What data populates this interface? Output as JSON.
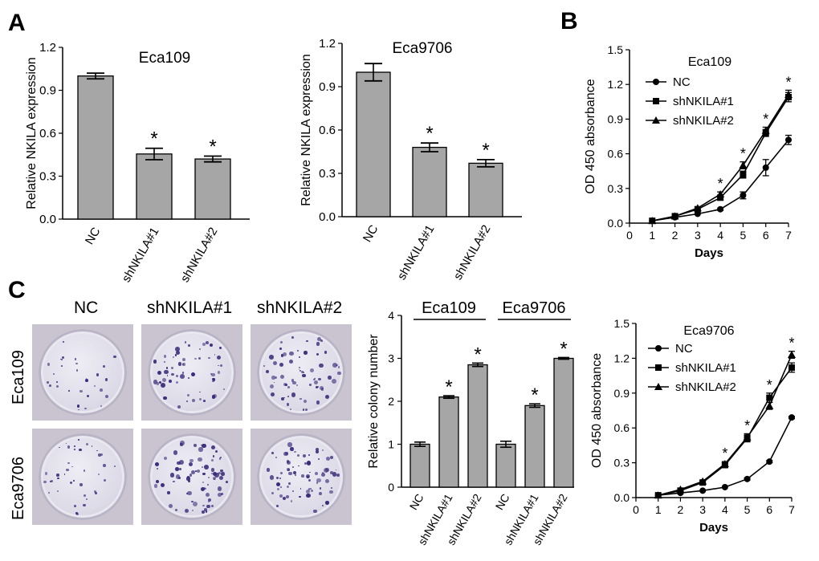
{
  "panels": {
    "A": "A",
    "B": "B",
    "C": "C"
  },
  "colors": {
    "bar": "#a6a6a6",
    "ink": "#000000",
    "colony_stain": "#3a2b7a"
  },
  "photos": {
    "column_labels": [
      "NC",
      "shNKILA#1",
      "shNKILA#2"
    ],
    "row_labels": [
      "Eca109",
      "Eca9706"
    ],
    "density": [
      [
        30,
        60,
        70
      ],
      [
        40,
        80,
        75
      ]
    ]
  },
  "chart_data": [
    {
      "id": "A1",
      "type": "bar",
      "title": "Eca109",
      "ylabel": "Relative NKILA expression",
      "categories": [
        "NC",
        "shNKILA#1",
        "shNKILA#2"
      ],
      "values": [
        1.0,
        0.455,
        0.42
      ],
      "errors": [
        0.02,
        0.04,
        0.02
      ],
      "significance": [
        "",
        "*",
        "*"
      ],
      "ylim": [
        0,
        1.2
      ],
      "yticks": [
        "0.0",
        "0.3",
        "0.6",
        "0.9",
        "1.2"
      ]
    },
    {
      "id": "A2",
      "type": "bar",
      "title": "Eca9706",
      "ylabel": "Relative NKILA expression",
      "categories": [
        "NC",
        "shNKILA#1",
        "shNKILA#2"
      ],
      "values": [
        1.0,
        0.48,
        0.37
      ],
      "errors": [
        0.06,
        0.03,
        0.025
      ],
      "significance": [
        "",
        "*",
        "*"
      ],
      "ylim": [
        0,
        1.2
      ],
      "yticks": [
        "0.0",
        "0.3",
        "0.6",
        "0.9",
        "1.2"
      ]
    },
    {
      "id": "B1",
      "type": "line",
      "title": "Eca109",
      "xlabel": "Days",
      "ylabel": "OD 450 absorbance",
      "x": [
        1,
        2,
        3,
        4,
        5,
        6,
        7
      ],
      "xticks": [
        "0",
        "1",
        "2",
        "3",
        "4",
        "5",
        "6",
        "7"
      ],
      "xlim": [
        0,
        7
      ],
      "ylim": [
        0,
        1.5
      ],
      "yticks": [
        "0.0",
        "0.3",
        "0.6",
        "0.9",
        "1.2",
        "1.5"
      ],
      "series": [
        {
          "name": "NC",
          "marker": "circle",
          "values": [
            0.02,
            0.05,
            0.08,
            0.12,
            0.24,
            0.48,
            0.72
          ],
          "errors": [
            0,
            0,
            0,
            0.01,
            0.03,
            0.07,
            0.04
          ]
        },
        {
          "name": "shNKILA#1",
          "marker": "square",
          "values": [
            0.02,
            0.06,
            0.12,
            0.22,
            0.42,
            0.78,
            1.09
          ],
          "errors": [
            0,
            0,
            0,
            0.02,
            0.03,
            0.03,
            0.04
          ]
        },
        {
          "name": "shNKILA#2",
          "marker": "triangle",
          "values": [
            0.02,
            0.06,
            0.13,
            0.25,
            0.5,
            0.8,
            1.11
          ],
          "errors": [
            0,
            0,
            0,
            0.02,
            0.03,
            0.03,
            0.04
          ]
        }
      ],
      "significance_days": [
        4,
        5,
        6,
        7
      ],
      "significance_mark": "*"
    },
    {
      "id": "B2",
      "type": "line",
      "title": "Eca9706",
      "xlabel": "Days",
      "ylabel": "OD 450 absorbance",
      "x": [
        1,
        2,
        3,
        4,
        5,
        6,
        7
      ],
      "xticks": [
        "0",
        "1",
        "2",
        "3",
        "4",
        "5",
        "6",
        "7"
      ],
      "xlim": [
        0,
        7
      ],
      "ylim": [
        0,
        1.5
      ],
      "yticks": [
        "0.0",
        "0.3",
        "0.6",
        "0.9",
        "1.2",
        "1.5"
      ],
      "series": [
        {
          "name": "NC",
          "marker": "circle",
          "values": [
            0.02,
            0.04,
            0.06,
            0.09,
            0.16,
            0.31,
            0.69
          ],
          "errors": [
            0,
            0,
            0,
            0,
            0.01,
            0.01,
            0.01
          ]
        },
        {
          "name": "shNKILA#1",
          "marker": "square",
          "values": [
            0.02,
            0.06,
            0.13,
            0.28,
            0.51,
            0.86,
            1.12
          ],
          "errors": [
            0,
            0,
            0,
            0.02,
            0.03,
            0.04,
            0.04
          ]
        },
        {
          "name": "shNKILA#2",
          "marker": "triangle",
          "values": [
            0.02,
            0.07,
            0.14,
            0.29,
            0.52,
            0.79,
            1.23
          ],
          "errors": [
            0,
            0,
            0,
            0.02,
            0.03,
            0.03,
            0.03
          ]
        }
      ],
      "significance_days": [
        4,
        5,
        6,
        7
      ],
      "significance_mark": "*"
    },
    {
      "id": "C",
      "type": "bar",
      "ylabel": "Relative colony number",
      "groups": [
        "Eca109",
        "Eca9706"
      ],
      "categories": [
        "NC",
        "shNKILA#1",
        "shNKILA#2",
        "NC",
        "shNKILA#1",
        "shNKILA#2"
      ],
      "values": [
        1.0,
        2.1,
        2.85,
        1.0,
        1.9,
        3.0
      ],
      "errors": [
        0.05,
        0.03,
        0.04,
        0.07,
        0.04,
        0.02
      ],
      "significance": [
        "",
        "*",
        "*",
        "",
        "*",
        "*"
      ],
      "ylim": [
        0,
        4
      ],
      "yticks": [
        "0",
        "1",
        "2",
        "3",
        "4"
      ]
    }
  ]
}
